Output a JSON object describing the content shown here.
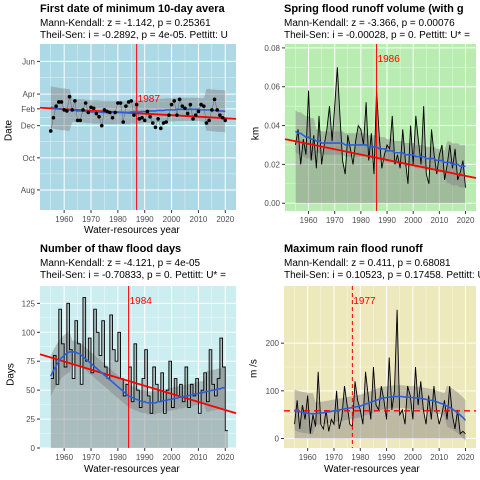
{
  "chart_data": [
    {
      "type": "line",
      "title": "First date of minimum 10-day avera",
      "subtitle1": "Mann-Kendall: z = -1.142, p = 0.25361",
      "subtitle2": "Theil-Sen: i = -0.2892, p = 4e-05. Pettitt: U",
      "xlabel": "Water-resources year",
      "ylabel": "Date",
      "xlim": [
        1951,
        2024
      ],
      "ylim": [
        205,
        520
      ],
      "x_ticks": [
        1960,
        1970,
        1980,
        1990,
        2000,
        2010,
        2020
      ],
      "y_ticks": [
        {
          "v": 243,
          "label": "Aug"
        },
        {
          "v": 304,
          "label": "Oct"
        },
        {
          "v": 365,
          "label": "Dec"
        },
        {
          "v": 397,
          "label": "Feb"
        },
        {
          "v": 425,
          "label": "Apr"
        },
        {
          "v": 487,
          "label": "Jun"
        }
      ],
      "change_point": {
        "year": 1987,
        "label": "1987"
      },
      "x": [
        1955,
        1956,
        1957,
        1958,
        1959,
        1960,
        1961,
        1962,
        1963,
        1964,
        1965,
        1966,
        1967,
        1968,
        1969,
        1970,
        1971,
        1972,
        1973,
        1974,
        1975,
        1976,
        1977,
        1978,
        1979,
        1980,
        1981,
        1982,
        1983,
        1984,
        1985,
        1986,
        1987,
        1988,
        1989,
        1990,
        1991,
        1992,
        1993,
        1994,
        1995,
        1996,
        1997,
        1998,
        1999,
        2000,
        2001,
        2002,
        2003,
        2004,
        2005,
        2006,
        2007,
        2008,
        2009,
        2010,
        2011,
        2012,
        2013,
        2014,
        2015,
        2016,
        2017,
        2018,
        2019,
        2020
      ],
      "values": [
        355,
        380,
        402,
        410,
        410,
        395,
        393,
        420,
        395,
        412,
        375,
        375,
        395,
        408,
        390,
        400,
        398,
        388,
        382,
        365,
        395,
        392,
        390,
        380,
        390,
        408,
        408,
        372,
        402,
        410,
        412,
        385,
        405,
        378,
        380,
        375,
        392,
        382,
        370,
        362,
        378,
        360,
        370,
        372,
        385,
        405,
        412,
        385,
        415,
        402,
        398,
        388,
        405,
        378,
        385,
        392,
        405,
        402,
        370,
        375,
        395,
        415,
        395,
        385,
        380,
        375
      ],
      "loess": [
        400,
        399,
        398,
        397,
        396,
        396,
        395,
        395,
        394,
        394,
        393,
        393,
        393,
        392,
        392,
        391,
        391,
        391,
        391,
        390,
        390,
        390,
        390,
        390,
        390,
        390,
        390,
        390,
        390,
        390,
        391,
        391,
        391,
        391,
        392,
        392,
        392,
        393,
        393,
        393,
        394,
        394,
        394,
        395,
        395,
        395,
        395,
        396,
        396,
        396,
        396,
        396,
        396,
        396,
        396,
        396,
        395,
        395,
        395,
        395,
        394,
        394,
        393,
        393,
        393,
        392
      ],
      "trend": {
        "x": [
          1951,
          2024
        ],
        "y": [
          399,
          378
        ]
      },
      "colors": {
        "background": "#add8e6",
        "trend": "#ff0000",
        "loess": "#2b5fd9",
        "point": "#000000",
        "change_point": "#ff0000",
        "ribbon": "#808080"
      }
    },
    {
      "type": "line",
      "title": "Spring flood runoff volume (with g",
      "subtitle1": "Mann-Kendall: z = -3.366, p = 0.00076",
      "subtitle2": "Theil-Sen: i = -0.00028, p = 0. Pettitt: U* =",
      "xlabel": "",
      "ylabel": "km",
      "xlim": [
        1951,
        2024
      ],
      "ylim": [
        -0.004,
        0.082
      ],
      "x_ticks": [
        1960,
        1970,
        1980,
        1990,
        2000,
        2010,
        2020
      ],
      "y_ticks": [
        {
          "v": 0.0,
          "label": "0.00"
        },
        {
          "v": 0.02,
          "label": "0.02"
        },
        {
          "v": 0.04,
          "label": "0.04"
        },
        {
          "v": 0.06,
          "label": "0.06"
        },
        {
          "v": 0.08,
          "label": "0.08"
        }
      ],
      "change_point": {
        "year": 1986,
        "label": "1986"
      },
      "x": [
        1955,
        1956,
        1957,
        1958,
        1959,
        1960,
        1961,
        1962,
        1963,
        1964,
        1965,
        1966,
        1967,
        1968,
        1969,
        1970,
        1971,
        1972,
        1973,
        1974,
        1975,
        1976,
        1977,
        1978,
        1979,
        1980,
        1981,
        1982,
        1983,
        1984,
        1985,
        1986,
        1987,
        1988,
        1989,
        1990,
        1991,
        1992,
        1993,
        1994,
        1995,
        1996,
        1997,
        1998,
        1999,
        2000,
        2001,
        2002,
        2003,
        2004,
        2005,
        2006,
        2007,
        2008,
        2009,
        2010,
        2011,
        2012,
        2013,
        2014,
        2015,
        2016,
        2017,
        2018,
        2019,
        2020
      ],
      "values": [
        0.03,
        0.038,
        0.02,
        0.033,
        0.025,
        0.058,
        0.022,
        0.035,
        0.018,
        0.045,
        0.02,
        0.03,
        0.038,
        0.05,
        0.032,
        0.05,
        0.07,
        0.045,
        0.022,
        0.015,
        0.035,
        0.028,
        0.02,
        0.032,
        0.04,
        0.038,
        0.03,
        0.052,
        0.022,
        0.036,
        0.015,
        0.058,
        0.035,
        0.018,
        0.025,
        0.03,
        0.028,
        0.045,
        0.02,
        0.025,
        0.018,
        0.038,
        0.022,
        0.01,
        0.04,
        0.02,
        0.045,
        0.032,
        0.02,
        0.05,
        0.015,
        0.01,
        0.038,
        0.025,
        0.015,
        0.025,
        0.03,
        0.012,
        0.02,
        0.03,
        0.018,
        0.028,
        0.012,
        0.016,
        0.022,
        0.008
      ],
      "loess": [
        0.037,
        0.036,
        0.036,
        0.035,
        0.034,
        0.034,
        0.033,
        0.033,
        0.032,
        0.032,
        0.031,
        0.031,
        0.031,
        0.031,
        0.031,
        0.031,
        0.031,
        0.031,
        0.031,
        0.03,
        0.03,
        0.03,
        0.03,
        0.03,
        0.03,
        0.03,
        0.03,
        0.03,
        0.029,
        0.029,
        0.029,
        0.029,
        0.028,
        0.028,
        0.028,
        0.027,
        0.027,
        0.027,
        0.026,
        0.026,
        0.026,
        0.026,
        0.025,
        0.025,
        0.025,
        0.025,
        0.024,
        0.024,
        0.024,
        0.024,
        0.023,
        0.023,
        0.023,
        0.023,
        0.022,
        0.022,
        0.022,
        0.021,
        0.021,
        0.021,
        0.02,
        0.02,
        0.02,
        0.019,
        0.019,
        0.019
      ],
      "trend": {
        "x": [
          1951,
          2024
        ],
        "y": [
          0.033,
          0.013
        ]
      },
      "colors": {
        "background": "#b8ecb0",
        "trend": "#ff0000",
        "loess": "#2b5fd9",
        "line": "#000000",
        "change_point": "#ff0000",
        "ribbon": "#808080"
      }
    },
    {
      "type": "line",
      "title": "Number of thaw flood days",
      "subtitle1": "Mann-Kendall: z = -4.121, p = 4e-05",
      "subtitle2": "Theil-Sen: i = -0.70833, p = 0. Pettitt: U* =",
      "xlabel": "Water-resources year",
      "ylabel": "Days",
      "xlim": [
        1951,
        2024
      ],
      "ylim": [
        0,
        140
      ],
      "x_ticks": [
        1960,
        1970,
        1980,
        1990,
        2000,
        2010,
        2020
      ],
      "y_ticks": [
        {
          "v": 0,
          "label": "0"
        },
        {
          "v": 25,
          "label": "25"
        },
        {
          "v": 50,
          "label": "50"
        },
        {
          "v": 75,
          "label": "75"
        },
        {
          "v": 100,
          "label": "100"
        },
        {
          "v": 125,
          "label": "125"
        }
      ],
      "change_point": {
        "year": 1984,
        "label": "1984"
      },
      "x": [
        1955,
        1956,
        1957,
        1958,
        1959,
        1960,
        1961,
        1962,
        1963,
        1964,
        1965,
        1966,
        1967,
        1968,
        1969,
        1970,
        1971,
        1972,
        1973,
        1974,
        1975,
        1976,
        1977,
        1978,
        1979,
        1980,
        1981,
        1982,
        1983,
        1984,
        1985,
        1986,
        1987,
        1988,
        1989,
        1990,
        1991,
        1992,
        1993,
        1994,
        1995,
        1996,
        1997,
        1998,
        1999,
        2000,
        2001,
        2002,
        2003,
        2004,
        2005,
        2006,
        2007,
        2008,
        2009,
        2010,
        2011,
        2012,
        2013,
        2014,
        2015,
        2016,
        2017,
        2018,
        2019,
        2020
      ],
      "values": [
        60,
        80,
        55,
        120,
        90,
        70,
        125,
        85,
        60,
        110,
        90,
        55,
        130,
        75,
        95,
        65,
        120,
        100,
        80,
        110,
        70,
        60,
        115,
        85,
        75,
        100,
        60,
        45,
        55,
        70,
        40,
        90,
        50,
        35,
        60,
        85,
        45,
        30,
        70,
        55,
        40,
        65,
        30,
        50,
        75,
        35,
        60,
        45,
        55,
        40,
        70,
        35,
        55,
        45,
        60,
        30,
        50,
        65,
        40,
        85,
        55,
        45,
        60,
        95,
        70,
        15
      ],
      "loess": [
        62,
        67,
        71,
        75,
        78,
        80,
        82,
        83,
        83,
        83,
        82,
        81,
        79,
        77,
        75,
        73,
        71,
        69,
        67,
        65,
        63,
        61,
        59,
        57,
        55,
        53,
        51,
        49,
        47,
        45,
        44,
        43,
        42,
        41,
        40,
        40,
        39,
        39,
        39,
        39,
        40,
        40,
        41,
        41,
        42,
        42,
        43,
        43,
        44,
        44,
        45,
        45,
        46,
        46,
        47,
        47,
        48,
        48,
        49,
        49,
        50,
        50,
        51,
        51,
        52,
        52
      ],
      "trend": {
        "x": [
          1951,
          2024
        ],
        "y": [
          81,
          30
        ]
      },
      "colors": {
        "background": "#cdeef0",
        "trend": "#ff0000",
        "loess": "#2b5fd9",
        "line": "#000000",
        "change_point": "#ff0000",
        "ribbon": "#808080"
      }
    },
    {
      "type": "line",
      "title": "Maximum rain flood runoff",
      "subtitle1": "Mann-Kendall: z = 0.411, p = 0.68081",
      "subtitle2": "Theil-Sen: i = 0.10523, p = 0.17458. Pettitt: U*",
      "xlabel": "Water-resources year",
      "ylabel": "m /s",
      "xlim": [
        1951,
        2024
      ],
      "ylim": [
        -20,
        320
      ],
      "x_ticks": [
        1960,
        1970,
        1980,
        1990,
        2000,
        2010,
        2020
      ],
      "y_ticks": [
        {
          "v": 0,
          "label": "0"
        },
        {
          "v": 100,
          "label": "100"
        },
        {
          "v": 200,
          "label": "200"
        }
      ],
      "change_point": {
        "year": 1977,
        "label": "1977"
      },
      "mean_line": 58,
      "x": [
        1955,
        1956,
        1957,
        1958,
        1959,
        1960,
        1961,
        1962,
        1963,
        1964,
        1965,
        1966,
        1967,
        1968,
        1969,
        1970,
        1971,
        1972,
        1973,
        1974,
        1975,
        1976,
        1977,
        1978,
        1979,
        1980,
        1981,
        1982,
        1983,
        1984,
        1985,
        1986,
        1987,
        1988,
        1989,
        1990,
        1991,
        1992,
        1993,
        1994,
        1995,
        1996,
        1997,
        1998,
        1999,
        2000,
        2001,
        2002,
        2003,
        2004,
        2005,
        2006,
        2007,
        2008,
        2009,
        2010,
        2011,
        2012,
        2013,
        2014,
        2015,
        2016,
        2017,
        2018,
        2019,
        2020
      ],
      "values": [
        30,
        80,
        20,
        70,
        40,
        90,
        10,
        50,
        25,
        140,
        30,
        20,
        60,
        15,
        40,
        30,
        100,
        20,
        45,
        110,
        70,
        30,
        25,
        120,
        80,
        60,
        30,
        140,
        90,
        40,
        150,
        70,
        60,
        110,
        80,
        40,
        170,
        60,
        100,
        270,
        50,
        60,
        30,
        110,
        90,
        40,
        150,
        70,
        120,
        60,
        30,
        90,
        40,
        110,
        60,
        30,
        50,
        80,
        40,
        110,
        50,
        20,
        60,
        10,
        15,
        10
      ],
      "loess": [
        60,
        58,
        56,
        55,
        54,
        53,
        52,
        52,
        52,
        53,
        53,
        54,
        55,
        56,
        57,
        58,
        59,
        60,
        61,
        62,
        63,
        64,
        65,
        66,
        67,
        68,
        70,
        72,
        74,
        76,
        78,
        80,
        82,
        84,
        85,
        86,
        87,
        87,
        88,
        88,
        88,
        88,
        87,
        87,
        86,
        86,
        85,
        85,
        84,
        83,
        82,
        81,
        80,
        79,
        77,
        75,
        73,
        71,
        68,
        65,
        62,
        58,
        54,
        49,
        44,
        38
      ],
      "trend": {
        "x": [
          1951,
          2024
        ],
        "y": [
          57,
          63
        ]
      },
      "colors": {
        "background": "#eee8bd",
        "trend": "#ff0000",
        "loess": "#2b5fd9",
        "line": "#000000",
        "change_point": "#ff0000",
        "ribbon": "#808080"
      }
    }
  ]
}
